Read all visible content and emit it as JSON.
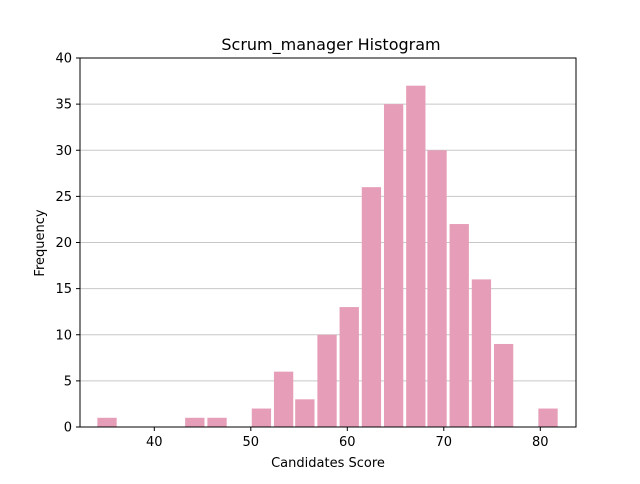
{
  "chart_data": {
    "type": "bar",
    "title": "Scrum_manager Histogram",
    "xlabel": "Candidates Score",
    "ylabel": "Frequency",
    "xlim": [
      32.3,
      83.7
    ],
    "ylim": [
      0,
      40
    ],
    "xticks": [
      40,
      50,
      60,
      70,
      80
    ],
    "yticks": [
      0,
      5,
      10,
      15,
      20,
      25,
      30,
      35,
      40
    ],
    "grid": {
      "y": true,
      "x": false
    },
    "bar_color": "#e69db7",
    "bins": [
      {
        "start": 34.1,
        "end": 36.1,
        "value": 1
      },
      {
        "start": 36.4,
        "end": 38.4,
        "value": 0
      },
      {
        "start": 38.7,
        "end": 40.7,
        "value": 0
      },
      {
        "start": 40.9,
        "end": 42.9,
        "value": 0
      },
      {
        "start": 43.2,
        "end": 45.2,
        "value": 1
      },
      {
        "start": 45.5,
        "end": 47.5,
        "value": 1
      },
      {
        "start": 47.8,
        "end": 49.8,
        "value": 0
      },
      {
        "start": 50.1,
        "end": 52.1,
        "value": 2
      },
      {
        "start": 52.4,
        "end": 54.4,
        "value": 6
      },
      {
        "start": 54.6,
        "end": 56.6,
        "value": 3
      },
      {
        "start": 56.9,
        "end": 58.9,
        "value": 10
      },
      {
        "start": 59.2,
        "end": 61.2,
        "value": 13
      },
      {
        "start": 61.5,
        "end": 63.5,
        "value": 26
      },
      {
        "start": 63.8,
        "end": 65.8,
        "value": 35
      },
      {
        "start": 66.1,
        "end": 68.1,
        "value": 37
      },
      {
        "start": 68.3,
        "end": 70.3,
        "value": 30
      },
      {
        "start": 70.6,
        "end": 72.6,
        "value": 22
      },
      {
        "start": 72.9,
        "end": 74.9,
        "value": 16
      },
      {
        "start": 75.2,
        "end": 77.2,
        "value": 9
      },
      {
        "start": 77.5,
        "end": 79.5,
        "value": 0
      },
      {
        "start": 79.8,
        "end": 81.8,
        "value": 2
      }
    ]
  }
}
